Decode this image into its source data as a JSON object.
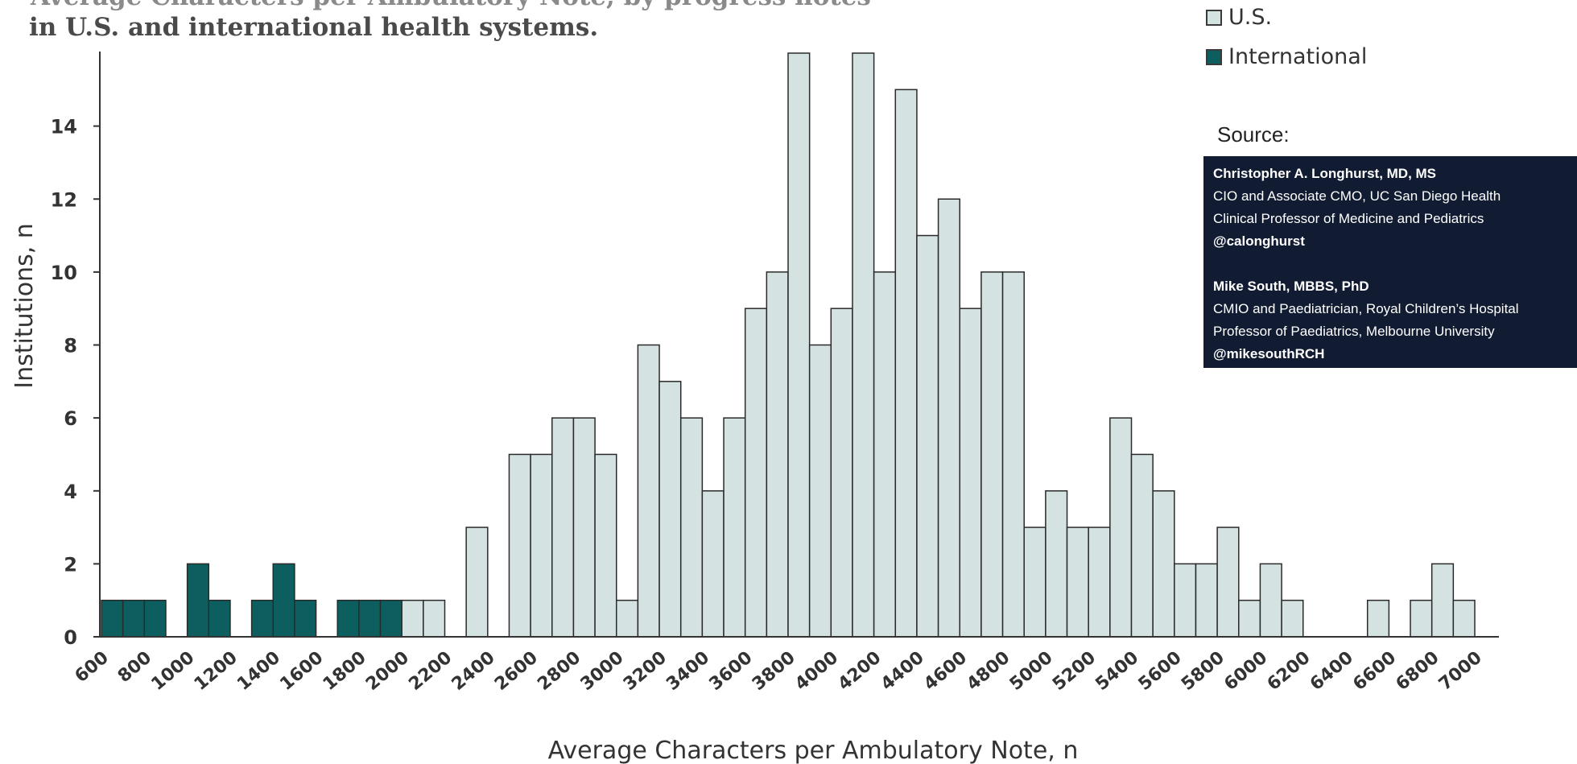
{
  "title_lines": [
    "Average Characters per Ambulatory Note, by progress notes",
    "in U.S. and international health systems."
  ],
  "legend": {
    "us_label": "U.S.",
    "international_label": "International"
  },
  "source": {
    "label": "Source:",
    "author1_name": "Christopher A. Longhurst, MD, MS",
    "author1_line1": "CIO and Associate CMO, UC San Diego Health",
    "author1_line2": "Clinical Professor of Medicine and Pediatrics",
    "author1_handle": "@calonghurst",
    "author2_name": "Mike South, MBBS, PhD",
    "author2_line1": "CMIO and Paediatrician, Royal Children’s Hospital",
    "author2_line2": "Professor of Paediatrics, Melbourne University",
    "author2_handle": "@mikesouthRCH"
  },
  "colors": {
    "us": "#d4e3e2",
    "international": "#0d5f5f",
    "bar_edge": "#2a2a2a"
  },
  "chart_data": {
    "type": "bar",
    "stacked": false,
    "xlabel": "Average Characters per Ambulatory Note, n",
    "ylabel": "Institutions, n",
    "ylim": [
      0,
      16
    ],
    "yticks": [
      0,
      2,
      4,
      6,
      8,
      10,
      12,
      14
    ],
    "xticks": [
      600,
      800,
      1000,
      1200,
      1400,
      1600,
      1800,
      2000,
      2200,
      2400,
      2600,
      2800,
      3000,
      3200,
      3400,
      3600,
      3800,
      4000,
      4200,
      4400,
      4600,
      4800,
      5000,
      5200,
      5400,
      5600,
      5800,
      6000,
      6200,
      6400,
      6600,
      6800,
      7000
    ],
    "bin_width": 100,
    "bins_start": [
      600,
      700,
      800,
      900,
      1000,
      1100,
      1200,
      1300,
      1400,
      1500,
      1600,
      1700,
      1800,
      1900,
      2000,
      2100,
      2200,
      2300,
      2400,
      2500,
      2600,
      2700,
      2800,
      2900,
      3000,
      3100,
      3200,
      3300,
      3400,
      3500,
      3600,
      3700,
      3800,
      3900,
      4000,
      4100,
      4200,
      4300,
      4400,
      4500,
      4600,
      4700,
      4800,
      4900,
      5000,
      5100,
      5200,
      5300,
      5400,
      5500,
      5600,
      5700,
      5800,
      5900,
      6000,
      6100,
      6200,
      6300,
      6400,
      6500,
      6600,
      6700,
      6800,
      6900
    ],
    "series": [
      {
        "name": "U.S.",
        "values": [
          0,
          0,
          0,
          0,
          0,
          0,
          0,
          0,
          0,
          0,
          0,
          0,
          0,
          0,
          1,
          1,
          0,
          3,
          0,
          5,
          5,
          6,
          6,
          5,
          1,
          8,
          7,
          6,
          4,
          6,
          9,
          10,
          16,
          8,
          9,
          16,
          10,
          15,
          11,
          12,
          9,
          10,
          10,
          3,
          4,
          3,
          3,
          6,
          5,
          4,
          2,
          2,
          3,
          1,
          2,
          1,
          0,
          0,
          0,
          1,
          0,
          1,
          2,
          0
        ]
      },
      {
        "name": "International",
        "values": [
          1,
          1,
          1,
          0,
          2,
          1,
          0,
          1,
          2,
          1,
          0,
          1,
          1,
          1,
          0,
          0,
          0,
          0,
          0,
          0,
          0,
          0,
          0,
          0,
          0,
          0,
          0,
          0,
          0,
          0,
          0,
          0,
          0,
          0,
          0,
          0,
          0,
          0,
          0,
          0,
          0,
          0,
          0,
          0,
          0,
          0,
          0,
          0,
          0,
          0,
          0,
          0,
          0,
          0,
          0,
          0,
          0,
          0,
          0,
          0,
          0,
          0,
          0,
          0
        ]
      }
    ],
    "extra_bar": {
      "start": 6900,
      "value": 1,
      "series": "U.S."
    }
  }
}
